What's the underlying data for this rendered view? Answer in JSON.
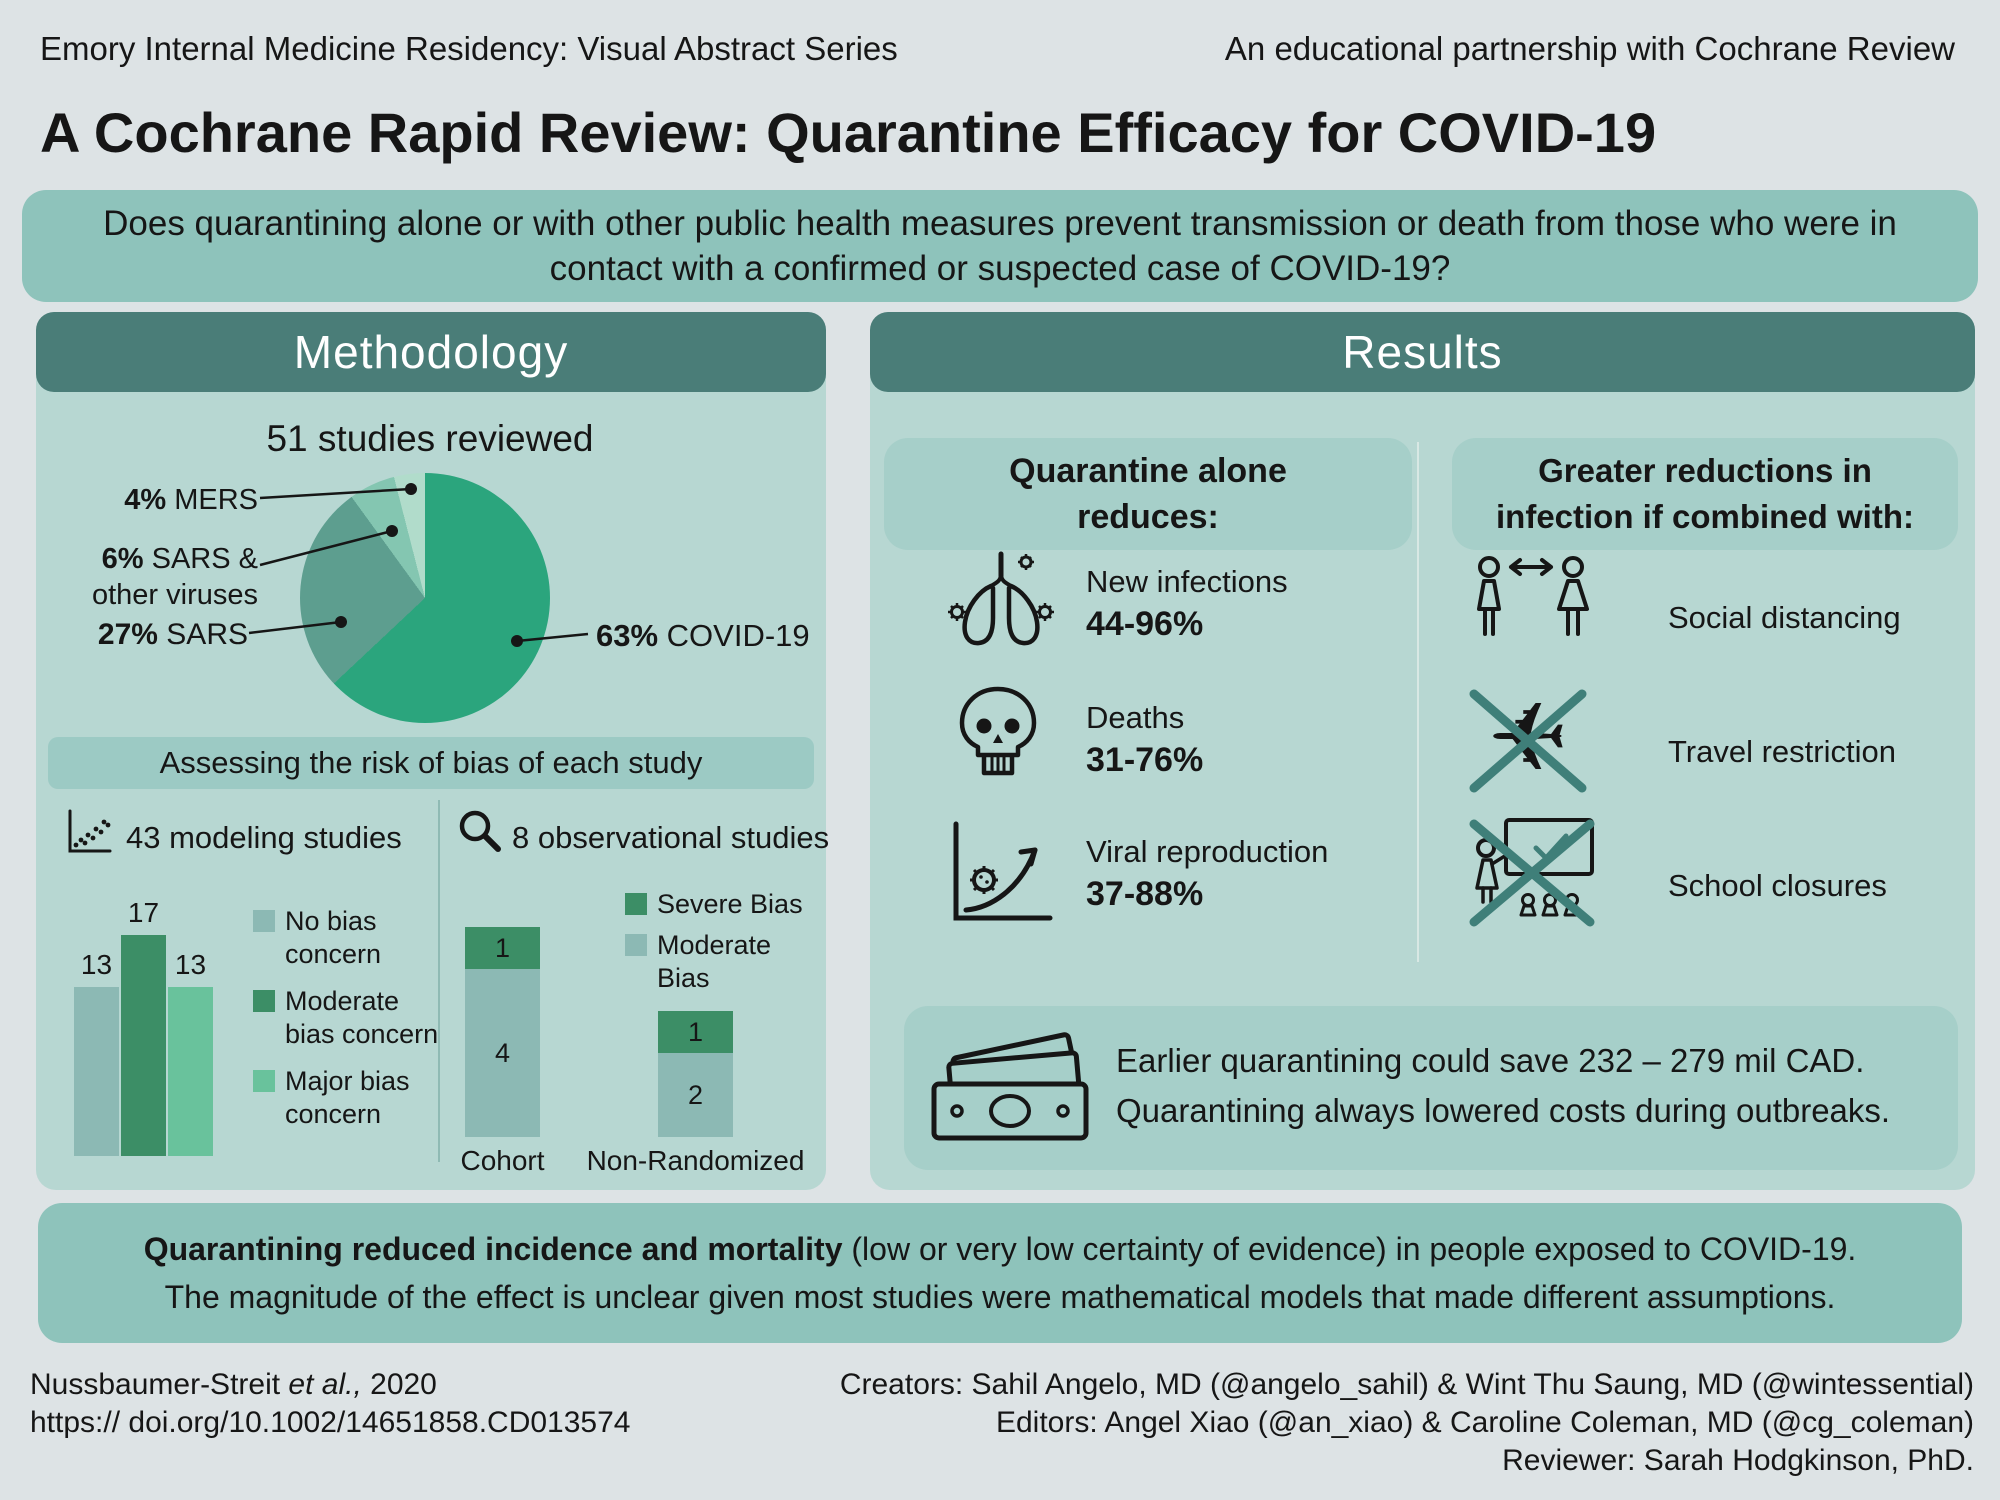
{
  "page": {
    "header_left": "Emory Internal Medicine Residency: Visual Abstract Series",
    "header_right": "An educational partnership with Cochrane Review",
    "title": "A Cochrane Rapid Review: Quarantine Efficacy for COVID-19",
    "question": "Does quarantining alone or with other public health measures prevent transmission or death from those who were in contact with a confirmed or suspected case of COVID-19?"
  },
  "colors": {
    "background": "#dde3e5",
    "panel": "#b7d7d2",
    "panel_header": "#4a7d78",
    "banner": "#8ec3bb",
    "callout": "#a6cfc9",
    "bias_banner": "#9ccac4",
    "cross": "#3f7f79",
    "ink": "#161616"
  },
  "methodology": {
    "header": "Methodology",
    "pie": {
      "title": "51 studies reviewed",
      "slices": [
        {
          "name": "COVID-19",
          "pct": "63%",
          "value": 63,
          "color": "#2ba57d"
        },
        {
          "name": "SARS",
          "pct": "27%",
          "value": 27,
          "color": "#5d9e8f"
        },
        {
          "name": "SARS & other viruses",
          "pct": "6%",
          "value": 6,
          "color": "#84c6b1"
        },
        {
          "name": "MERS",
          "pct": "4%",
          "value": 4,
          "color": "#b1dccb"
        }
      ]
    },
    "bias_banner": "Assessing the risk of bias of each study",
    "modeling": {
      "title": "43 modeling studies",
      "bars": [
        {
          "label": "No bias concern",
          "value": 13,
          "color": "#8cb9b4"
        },
        {
          "label": "Moderate bias concern",
          "value": 17,
          "color": "#3c8e66"
        },
        {
          "label": "Major bias concern",
          "value": 13,
          "color": "#69c29c"
        }
      ]
    },
    "observational": {
      "title": "8 observational studies",
      "legend": [
        {
          "label": "Severe Bias",
          "color": "#3c8e66"
        },
        {
          "label": "Moderate Bias",
          "color": "#8cb9b4"
        }
      ],
      "bars": [
        {
          "label": "Cohort",
          "severe": 1,
          "moderate": 4
        },
        {
          "label": "Non-Randomized",
          "severe": 1,
          "moderate": 2
        }
      ]
    }
  },
  "results": {
    "header": "Results",
    "quarantine_alone": {
      "title_line1": "Quarantine alone",
      "title_line2": "reduces:",
      "items": [
        {
          "icon": "lungs-icon",
          "label": "New infections",
          "value": "44-96%"
        },
        {
          "icon": "skull-icon",
          "label": "Deaths",
          "value": "31-76%"
        },
        {
          "icon": "viral-reproduction-icon",
          "label": "Viral reproduction",
          "value": "37-88%"
        }
      ]
    },
    "combined": {
      "title_line1": "Greater reductions in",
      "title_line2": "infection if combined with:",
      "items": [
        {
          "icon": "social-distancing-icon",
          "label": "Social distancing"
        },
        {
          "icon": "travel-restriction-icon",
          "label": "Travel restriction",
          "glyph": "✈"
        },
        {
          "icon": "school-closures-icon",
          "label": "School closures"
        }
      ]
    },
    "cost": {
      "line1": "Earlier quarantining could save 232 – 279 mil CAD.",
      "line2": "Quarantining always lowered costs during outbreaks."
    }
  },
  "summary": {
    "lead_bold": "Quarantining reduced incidence and mortality",
    "line1_rest": " (low or very low certainty of evidence) in people exposed to COVID-19.",
    "line2": "The magnitude of the effect is unclear given most studies were mathematical models that made different assumptions."
  },
  "footer": {
    "citation_authors": "Nussbaumer-Streit ",
    "citation_etal": "et al.,",
    "citation_year": " 2020",
    "doi": "https:// doi.org/10.1002/14651858.CD013574",
    "creators": "Creators: Sahil Angelo, MD (@angelo_sahil) & Wint Thu Saung, MD (@wintessential)",
    "editors": "Editors: Angel Xiao (@an_xiao) & Caroline Coleman, MD (@cg_coleman)",
    "reviewer": "Reviewer: Sarah Hodgkinson, PhD."
  },
  "chart_data": [
    {
      "type": "pie",
      "title": "51 studies reviewed",
      "labels": [
        "COVID-19",
        "SARS",
        "SARS & other viruses",
        "MERS"
      ],
      "values": [
        63,
        27,
        6,
        4
      ],
      "unit": "percent of 51 studies reviewed",
      "legend_position": "callout-labels"
    },
    {
      "type": "bar",
      "title": "43 modeling studies",
      "categories": [
        "No bias concern",
        "Moderate bias concern",
        "Major bias concern"
      ],
      "values": [
        13,
        17,
        13
      ],
      "ylim": [
        0,
        17
      ],
      "grid": false,
      "legend_position": "right"
    },
    {
      "type": "bar",
      "subtype": "stacked",
      "title": "8 observational studies",
      "categories": [
        "Cohort",
        "Non-Randomized"
      ],
      "series": [
        {
          "name": "Moderate Bias",
          "values": [
            4,
            2
          ]
        },
        {
          "name": "Severe Bias",
          "values": [
            1,
            1
          ]
        }
      ],
      "grid": false,
      "legend_position": "top-right"
    }
  ]
}
